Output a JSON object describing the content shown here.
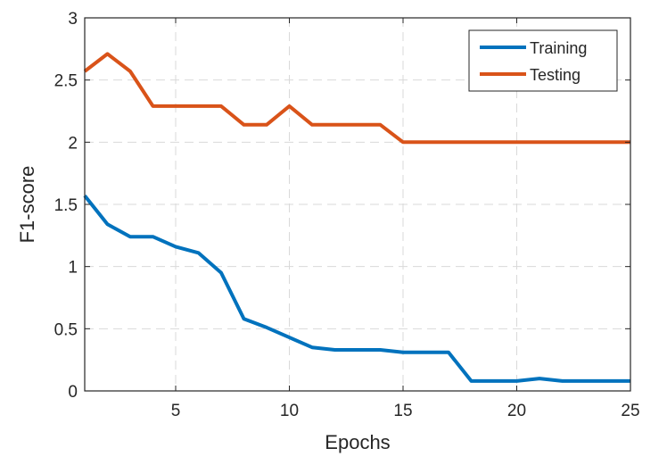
{
  "chart_data": {
    "type": "line",
    "xlabel": "Epochs",
    "ylabel": "F1-score",
    "xlim": [
      1,
      25
    ],
    "ylim": [
      0,
      3
    ],
    "xticks": [
      5,
      10,
      15,
      20,
      25
    ],
    "yticks": [
      0,
      0.5,
      1,
      1.5,
      2,
      2.5,
      3
    ],
    "xtick_labels": [
      "5",
      "10",
      "15",
      "20",
      "25"
    ],
    "ytick_labels": [
      "0",
      "0.5",
      "1",
      "1.5",
      "2",
      "2.5",
      "3"
    ],
    "grid": true,
    "legend_position": "top-right",
    "x": [
      1,
      2,
      3,
      4,
      5,
      6,
      7,
      8,
      9,
      10,
      11,
      12,
      13,
      14,
      15,
      16,
      17,
      18,
      19,
      20,
      21,
      22,
      23,
      24,
      25
    ],
    "series": [
      {
        "name": "Training",
        "color": "#0072BD",
        "values": [
          1.57,
          1.34,
          1.24,
          1.24,
          1.16,
          1.11,
          0.95,
          0.58,
          0.51,
          0.43,
          0.35,
          0.33,
          0.33,
          0.33,
          0.31,
          0.31,
          0.31,
          0.08,
          0.08,
          0.08,
          0.1,
          0.08,
          0.08,
          0.08,
          0.08
        ]
      },
      {
        "name": "Testing",
        "color": "#D95319",
        "values": [
          2.57,
          2.71,
          2.57,
          2.29,
          2.29,
          2.29,
          2.29,
          2.14,
          2.14,
          2.29,
          2.14,
          2.14,
          2.14,
          2.14,
          2.0,
          2.0,
          2.0,
          2.0,
          2.0,
          2.0,
          2.0,
          2.0,
          2.0,
          2.0,
          2.0
        ]
      }
    ]
  }
}
